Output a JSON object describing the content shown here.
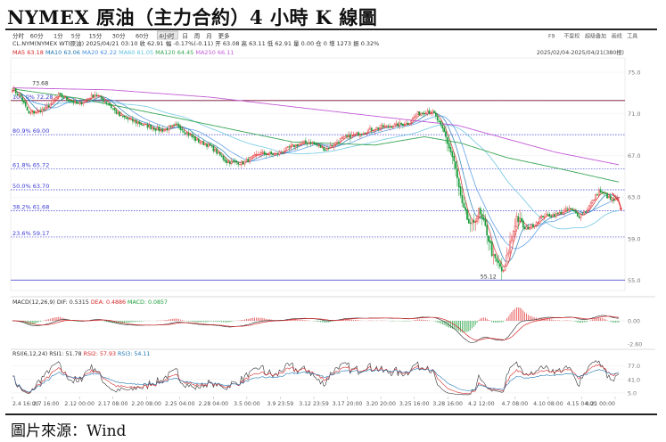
{
  "title": "NYMEX 原油（主力合約）4 小時 K 線圖",
  "source": "圖片來源：Wind",
  "toolbar": {
    "periods": [
      "分时",
      "60分",
      "1分",
      "5分",
      "15分",
      "30分",
      "60分",
      "4小时",
      "日",
      "周",
      "月",
      "更多"
    ],
    "selected_period": "4小时",
    "right_items": [
      "F9",
      "不复权",
      "超级叠加",
      "画线",
      "工具"
    ]
  },
  "info_line": {
    "symbol": "CL.NYM(NYMEX WTI原油)",
    "datetime": "2025/04/21 03:10",
    "items": [
      "收 62.91",
      "幅 -0.17%(-0.11)",
      "开 63.08",
      "高 63.11",
      "低 62.91",
      "量 0.00",
      "仓 0",
      "增 1273",
      "振 0.32%"
    ]
  },
  "ma_legend": [
    {
      "label": "MA5",
      "value": "63.18",
      "color": "#d62728"
    },
    {
      "label": "MA10",
      "value": "63.06",
      "color": "#1f77b4"
    },
    {
      "label": "MA20",
      "value": "62.22",
      "color": "#4a90e2"
    },
    {
      "label": "MA60",
      "value": "61.05",
      "color": "#5bc0de"
    },
    {
      "label": "MA120",
      "value": "64.45",
      "color": "#3aa655"
    },
    {
      "label": "MA250",
      "value": "66.11",
      "color": "#c25bd6"
    }
  ],
  "range_text": "2025/02/04-2025/04/21(380根)",
  "macd_legend": {
    "label": "MACD(12,26,9)",
    "dif": "DIF: 0.5315",
    "dea": "DEA: 0.4886",
    "macd": "MACD: 0.0857"
  },
  "rsi_legend": {
    "label": "RSI(6,12,24)",
    "rsi1": "RSI1: 51.78",
    "rsi2": "RSI2: 57.93",
    "rsi3": "RSI3: 54.11"
  },
  "colors": {
    "up": "#e4393c",
    "down": "#1a9e3a",
    "fib": "#3a3ad6",
    "resistance": "#7a1030"
  },
  "chart_data": {
    "type": "line",
    "chart_kind": "candlestick",
    "x_ticks": [
      "2.4 16:00",
      "2.7 16:00",
      "2.12 00:00",
      "2.17 08:00",
      "2.20 08:00",
      "2.25 04:00",
      "2.28 04:00",
      "3.5 00:00",
      "3.9 23:59",
      "3.12 23:59",
      "3.17 20:00",
      "3.20 20:00",
      "3.25 16:00",
      "3.28 16:00",
      "4.2 12:00",
      "4.7 08:00",
      "4.10 08:00",
      "4.15 04:00",
      "4.21 00:00"
    ],
    "price_axis": {
      "ylim": [
        54.2,
        76.2
      ],
      "ticks": [
        "75.0",
        "71.0",
        "67.0",
        "63.0",
        "59.0",
        "55.0"
      ]
    },
    "fib_levels": [
      {
        "label": "100.0%",
        "value": 72.28
      },
      {
        "label": "80.9%",
        "value": 69.0
      },
      {
        "label": "61.8%",
        "value": 65.72
      },
      {
        "label": "50.0%",
        "value": 63.7
      },
      {
        "label": "38.2%",
        "value": 61.68
      },
      {
        "label": "23.6%",
        "value": 59.17
      }
    ],
    "resistance_line": 72.28,
    "annotations": [
      {
        "text": "73.68",
        "value": 73.68
      },
      {
        "text": "55.12",
        "value": 55.12
      }
    ],
    "price_anchors": [
      [
        0,
        73.4
      ],
      [
        5,
        72.6
      ],
      [
        10,
        71.0
      ],
      [
        20,
        71.5
      ],
      [
        28,
        72.8
      ],
      [
        40,
        71.9
      ],
      [
        50,
        72.9
      ],
      [
        58,
        72.0
      ],
      [
        65,
        70.8
      ],
      [
        75,
        70.2
      ],
      [
        90,
        69.4
      ],
      [
        100,
        69.9
      ],
      [
        112,
        68.4
      ],
      [
        120,
        67.9
      ],
      [
        130,
        66.4
      ],
      [
        140,
        66.3
      ],
      [
        150,
        67.2
      ],
      [
        160,
        67.1
      ],
      [
        170,
        67.9
      ],
      [
        180,
        68.3
      ],
      [
        190,
        67.6
      ],
      [
        200,
        68.6
      ],
      [
        210,
        69.1
      ],
      [
        220,
        69.6
      ],
      [
        232,
        69.9
      ],
      [
        240,
        70.1
      ],
      [
        246,
        71.0
      ],
      [
        252,
        71.3
      ],
      [
        256,
        71.0
      ],
      [
        262,
        69.2
      ],
      [
        268,
        66.4
      ],
      [
        273,
        62.1
      ],
      [
        278,
        60.1
      ],
      [
        283,
        61.6
      ],
      [
        288,
        59.6
      ],
      [
        292,
        57.1
      ],
      [
        296,
        56.3
      ],
      [
        298,
        55.6
      ],
      [
        302,
        58.6
      ],
      [
        306,
        61.1
      ],
      [
        311,
        59.9
      ],
      [
        316,
        60.3
      ],
      [
        322,
        61.2
      ],
      [
        330,
        61.3
      ],
      [
        338,
        61.9
      ],
      [
        344,
        61.2
      ],
      [
        348,
        61.7
      ],
      [
        352,
        62.6
      ],
      [
        356,
        63.6
      ],
      [
        360,
        63.2
      ],
      [
        364,
        62.6
      ],
      [
        368,
        62.9
      ]
    ],
    "ma_anchors": {
      "MA120": [
        [
          0,
          73.4
        ],
        [
          40,
          72.5
        ],
        [
          100,
          70.6
        ],
        [
          170,
          68.3
        ],
        [
          220,
          68.0
        ],
        [
          250,
          68.8
        ],
        [
          272,
          68.2
        ],
        [
          300,
          66.8
        ],
        [
          330,
          65.8
        ],
        [
          368,
          64.45
        ]
      ],
      "MA250": [
        [
          0,
          73.5
        ],
        [
          60,
          73.3
        ],
        [
          120,
          72.6
        ],
        [
          180,
          71.5
        ],
        [
          230,
          70.6
        ],
        [
          270,
          69.9
        ],
        [
          300,
          68.6
        ],
        [
          330,
          67.3
        ],
        [
          368,
          66.11
        ]
      ]
    },
    "macd_axis": {
      "ylim": [
        -3.0,
        1.7
      ],
      "ticks": [
        "0.00",
        "-2.60"
      ]
    },
    "rsi_axis": {
      "ylim": [
        0,
        100
      ],
      "ticks": [
        "77.0",
        "41.0",
        "5.0"
      ]
    }
  }
}
